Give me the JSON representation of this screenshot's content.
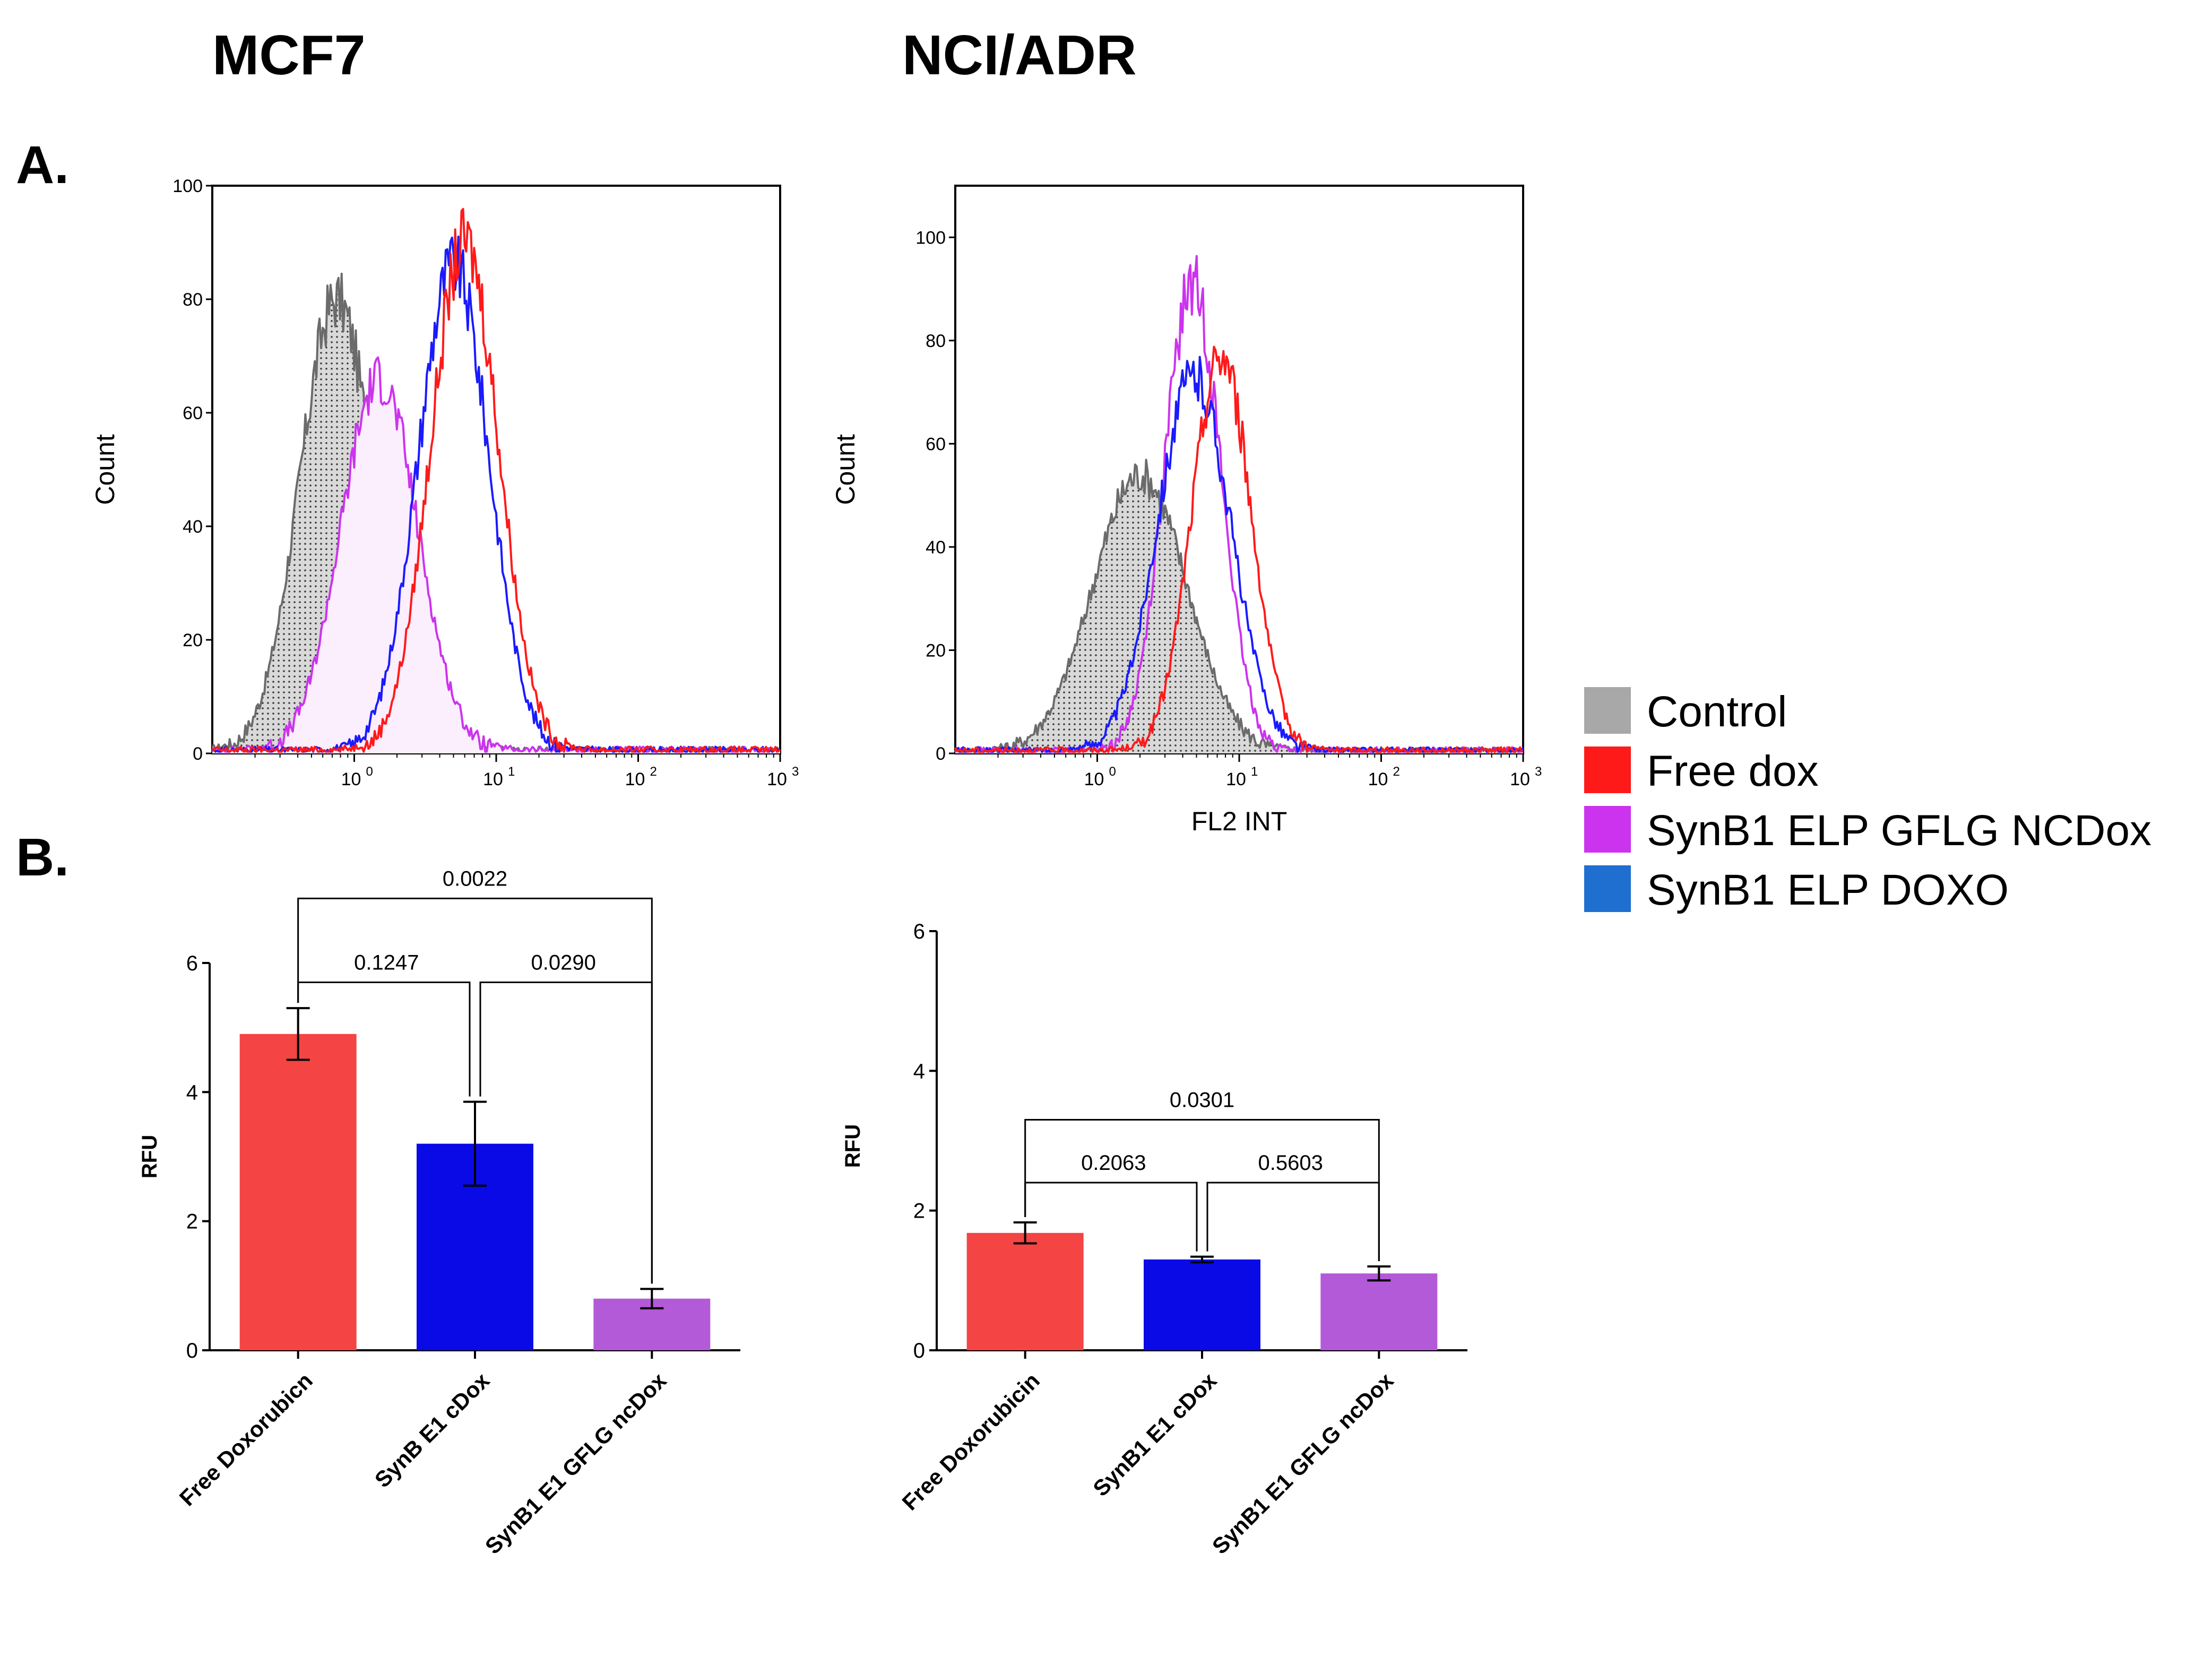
{
  "titles": {
    "left": "MCF7",
    "right": "NCI/ADR"
  },
  "panel_letters": {
    "a": "A.",
    "b": "B."
  },
  "legend": [
    {
      "label": "Control",
      "color": "#a8a8a8"
    },
    {
      "label": "Free dox",
      "color": "#ff1a1a"
    },
    {
      "label": "SynB1 ELP GFLG NCDox",
      "color": "#cc33ee"
    },
    {
      "label": "SynB1 ELP DOXO",
      "color": "#1f6fd0"
    }
  ],
  "chart_data": [
    {
      "id": "hist_mcf7",
      "type": "line",
      "title": "MCF7",
      "xlabel": "",
      "ylabel": "Count",
      "xscale": "log",
      "xlim": [
        0.1,
        1000
      ],
      "ylim": [
        0,
        100
      ],
      "yticks": [
        0,
        20,
        40,
        60,
        80,
        100
      ],
      "xticks": [
        {
          "value": 1,
          "label": "10",
          "exp": "0"
        },
        {
          "value": 10,
          "label": "10",
          "exp": "1"
        },
        {
          "value": 100,
          "label": "10",
          "exp": "2"
        },
        {
          "value": 1000,
          "label": "10",
          "exp": "3"
        }
      ],
      "series": [
        {
          "name": "Control",
          "color": "#6b6b6b",
          "fill": "#dcdcdc",
          "peak_x": 0.75,
          "peak_y": 80,
          "sigma": 0.26
        },
        {
          "name": "SynB1 ELP GFLG NCDox",
          "color": "#cc33ee",
          "fill": "#fbeefd",
          "peak_x": 1.5,
          "peak_y": 66,
          "sigma": 0.27
        },
        {
          "name": "SynB1 ELP DOXO",
          "color": "#1a1aff",
          "peak_x": 5.0,
          "peak_y": 86,
          "sigma": 0.25
        },
        {
          "name": "Free dox",
          "color": "#ff1a1a",
          "peak_x": 6.0,
          "peak_y": 90,
          "sigma": 0.24
        }
      ]
    },
    {
      "id": "hist_ncadr",
      "type": "line",
      "title": "NCI/ADR",
      "xlabel": "FL2 INT",
      "ylabel": "Count",
      "xscale": "log",
      "xlim": [
        0.1,
        1000
      ],
      "ylim": [
        0,
        110
      ],
      "yticks": [
        0,
        20,
        40,
        60,
        80,
        100
      ],
      "xticks": [
        {
          "value": 1,
          "label": "10",
          "exp": "0"
        },
        {
          "value": 10,
          "label": "10",
          "exp": "1"
        },
        {
          "value": 100,
          "label": "10",
          "exp": "2"
        },
        {
          "value": 1000,
          "label": "10",
          "exp": "3"
        }
      ],
      "series": [
        {
          "name": "Control",
          "color": "#6b6b6b",
          "fill": "#dcdcdc",
          "peak_x": 2.0,
          "peak_y": 54,
          "sigma": 0.33
        },
        {
          "name": "SynB1 ELP GFLG NCDox",
          "color": "#cc33ee",
          "peak_x": 4.7,
          "peak_y": 91,
          "sigma": 0.2
        },
        {
          "name": "SynB1 ELP DOXO",
          "color": "#1a1aff",
          "peak_x": 4.8,
          "peak_y": 73,
          "sigma": 0.26
        },
        {
          "name": "Free dox",
          "color": "#ff1a1a",
          "peak_x": 7.5,
          "peak_y": 77,
          "sigma": 0.21
        }
      ]
    },
    {
      "id": "bar_mcf7",
      "type": "bar",
      "title": "",
      "xlabel": "",
      "ylabel": "RFU",
      "ylim": [
        0,
        6
      ],
      "yticks": [
        0,
        2,
        4,
        6
      ],
      "categories": [
        "Free Doxorubicn",
        "SynB E1 cDox",
        "SynB1 E1 GFLG ncDox"
      ],
      "values": [
        4.9,
        3.2,
        0.8
      ],
      "errors": [
        0.4,
        0.65,
        0.15
      ],
      "colors": [
        "#f44444",
        "#0a0ae6",
        "#b25ad8"
      ],
      "comparisons": [
        {
          "from": 0,
          "to": 1,
          "p": "0.1247",
          "level": 5.7
        },
        {
          "from": 1,
          "to": 2,
          "p": "0.0290",
          "level": 5.7
        },
        {
          "from": 0,
          "to": 2,
          "p": "0.0022",
          "level": 7.0
        }
      ]
    },
    {
      "id": "bar_ncadr",
      "type": "bar",
      "title": "",
      "xlabel": "",
      "ylabel": "RFU",
      "ylim": [
        0,
        6
      ],
      "yticks": [
        0,
        2,
        4,
        6
      ],
      "categories": [
        "Free Doxorubicin",
        "SynB1 E1 cDox",
        "SynB1 E1 GFLG ncDox"
      ],
      "values": [
        1.68,
        1.3,
        1.1
      ],
      "errors": [
        0.15,
        0.04,
        0.1
      ],
      "colors": [
        "#f44444",
        "#0a0ae6",
        "#b25ad8"
      ],
      "comparisons": [
        {
          "from": 0,
          "to": 1,
          "p": "0.2063",
          "level": 2.4
        },
        {
          "from": 1,
          "to": 2,
          "p": "0.5603",
          "level": 2.4
        },
        {
          "from": 0,
          "to": 2,
          "p": "0.0301",
          "level": 3.3
        }
      ]
    }
  ]
}
